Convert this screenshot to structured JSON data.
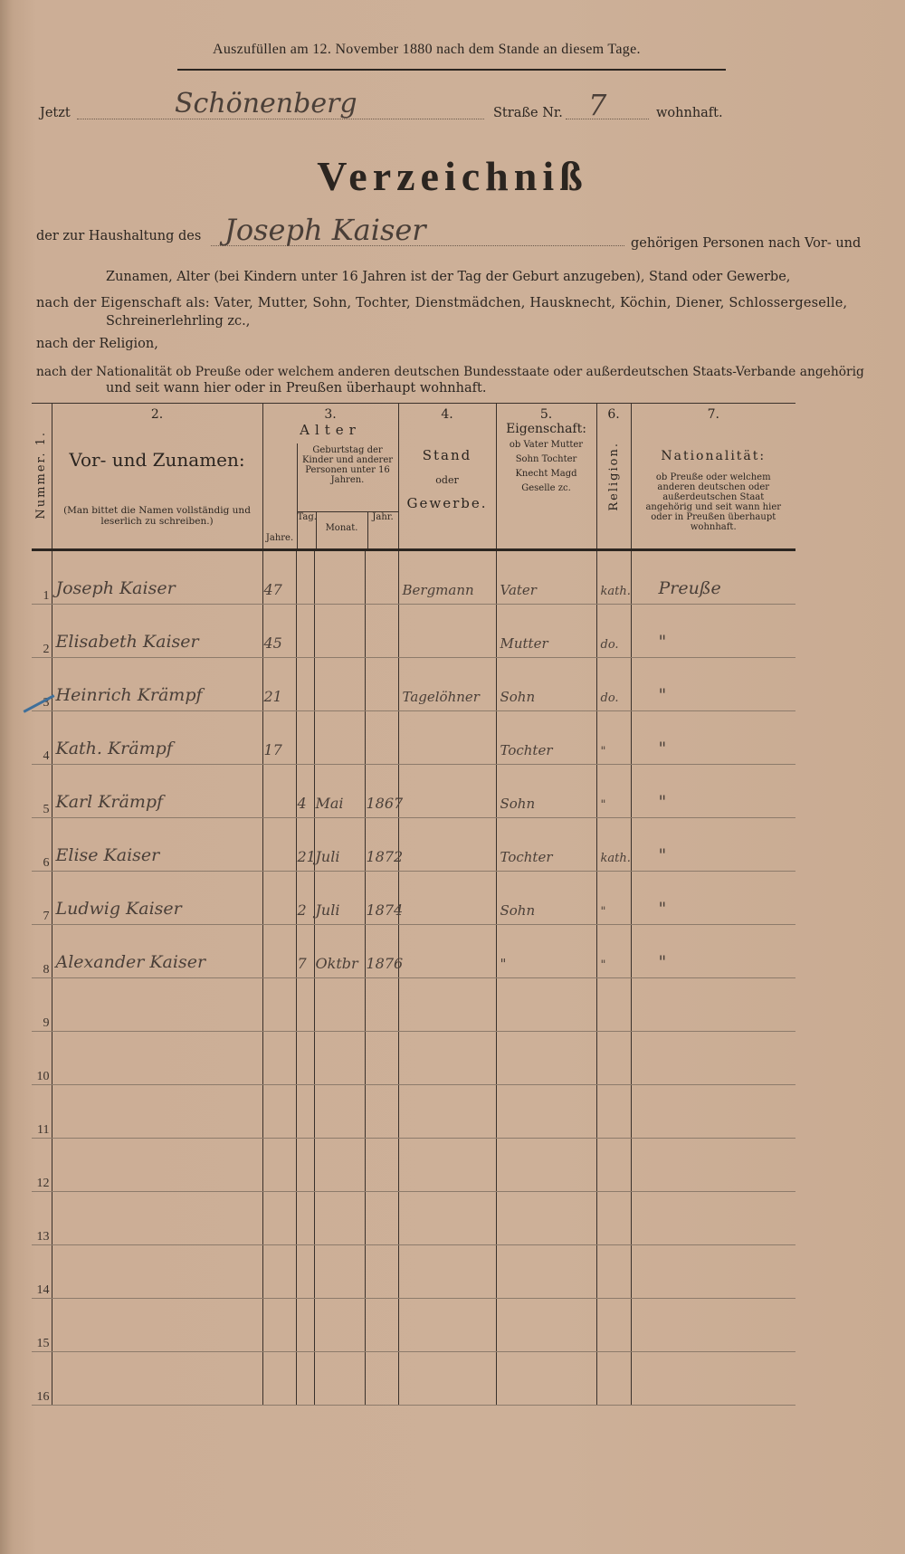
{
  "header": {
    "top_note": "Auszufüllen am 12. November 1880 nach dem Stande an diesem Tage.",
    "jetzt_label": "Jetzt",
    "street_value": "Schönenberg",
    "strasse_label": "Straße Nr.",
    "house_number": "7",
    "wohnhaft_label": "wohnhaft.",
    "title": "Verzeichniß",
    "household_prefix": "der zur Haushaltung des",
    "household_head": "Joseph Kaiser",
    "household_suffix": "gehörigen Personen nach Vor- und",
    "instructions": [
      "Zunamen, Alter (bei Kindern unter 16 Jahren ist der Tag der Geburt anzugeben), Stand oder Gewerbe,",
      "nach der Eigenschaft als: Vater, Mutter, Sohn, Tochter, Dienstmädchen, Hausknecht, Köchin, Diener, Schlossergeselle,",
      "Schreinerlehrling zc.,",
      "nach der Religion,",
      "nach der Nationalität ob Preuße oder welchem anderen deutschen Bundesstaate oder außerdeutschen Staats-Verbande angehörig",
      "und seit wann hier oder in Preußen überhaupt wohnhaft."
    ]
  },
  "columns": {
    "c1": "Nummer. 1.",
    "c2_num": "2.",
    "c2_title": "Vor- und Zunamen:",
    "c2_note": "(Man bittet die Namen vollständig und leserlich zu schreiben.)",
    "c3_num": "3.",
    "c3_title": "Alter",
    "c3_jahre": "Jahre.",
    "c3_geburtstag": "Geburtstag der Kinder und anderer Personen unter 16 Jahren.",
    "c3_tag": "Tag.",
    "c3_monat": "Monat.",
    "c3_jahr": "Jahr.",
    "c4_num": "4.",
    "c4_title": "Stand",
    "c4_oder": "oder",
    "c4_sub": "Gewerbe.",
    "c5_num": "5.",
    "c5_title": "Eigenschaft:",
    "c5_list": "ob Vater Mutter Sohn Tochter Knecht Magd Geselle zc.",
    "c6_num": "6.",
    "c6_title": "Religion.",
    "c7_num": "7.",
    "c7_title": "Nationalität:",
    "c7_note": "ob Preuße oder welchem anderen deutschen oder außerdeutschen Staat angehörig und seit wann hier oder in Preußen überhaupt wohnhaft."
  },
  "rows": [
    {
      "n": "1",
      "name": "Joseph Kaiser",
      "jahre": "47",
      "tag": "",
      "monat": "",
      "jahr": "",
      "stand": "Bergmann",
      "eig": "Vater",
      "rel": "kath.",
      "nat": "Preuße"
    },
    {
      "n": "2",
      "name": "Elisabeth Kaiser",
      "jahre": "45",
      "tag": "",
      "monat": "",
      "jahr": "",
      "stand": "",
      "eig": "Mutter",
      "rel": "do.",
      "nat": "\""
    },
    {
      "n": "3",
      "name": "Heinrich Krämpf",
      "jahre": "21",
      "tag": "",
      "monat": "",
      "jahr": "",
      "stand": "Tagelöhner",
      "eig": "Sohn",
      "rel": "do.",
      "nat": "\""
    },
    {
      "n": "4",
      "name": "Kath. Krämpf",
      "jahre": "17",
      "tag": "",
      "monat": "",
      "jahr": "",
      "stand": "",
      "eig": "Tochter",
      "rel": "\"",
      "nat": "\""
    },
    {
      "n": "5",
      "name": "Karl Krämpf",
      "jahre": "",
      "tag": "4",
      "monat": "Mai",
      "jahr": "1867",
      "stand": "",
      "eig": "Sohn",
      "rel": "\"",
      "nat": "\""
    },
    {
      "n": "6",
      "name": "Elise Kaiser",
      "jahre": "",
      "tag": "21",
      "monat": "Juli",
      "jahr": "1872",
      "stand": "",
      "eig": "Tochter",
      "rel": "kath.",
      "nat": "\""
    },
    {
      "n": "7",
      "name": "Ludwig Kaiser",
      "jahre": "",
      "tag": "2",
      "monat": "Juli",
      "jahr": "1874",
      "stand": "",
      "eig": "Sohn",
      "rel": "\"",
      "nat": "\""
    },
    {
      "n": "8",
      "name": "Alexander Kaiser",
      "jahre": "",
      "tag": "7",
      "monat": "Oktbr",
      "jahr": "1876",
      "stand": "",
      "eig": "\"",
      "rel": "\"",
      "nat": "\""
    },
    {
      "n": "9"
    },
    {
      "n": "10"
    },
    {
      "n": "11"
    },
    {
      "n": "12"
    },
    {
      "n": "13"
    },
    {
      "n": "14"
    },
    {
      "n": "15"
    },
    {
      "n": "16"
    }
  ]
}
